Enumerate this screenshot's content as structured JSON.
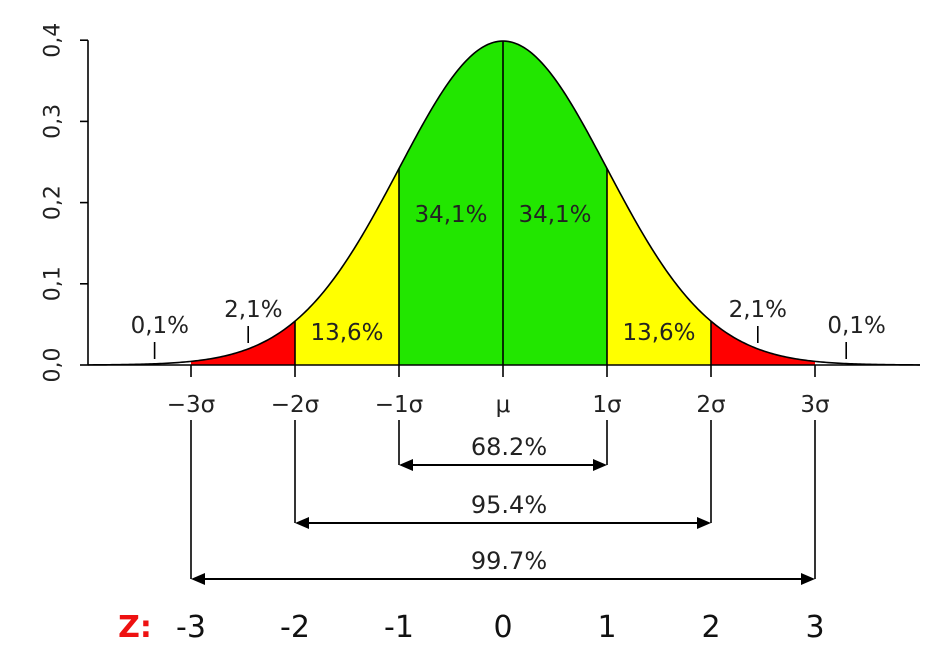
{
  "chart_data": {
    "type": "area",
    "title": "",
    "xlabel": "",
    "ylabel": "",
    "xlim": [
      -3.9,
      4.0
    ],
    "ylim": [
      0.0,
      0.4
    ],
    "grid": false,
    "curve": "normal-density",
    "y_ticks": [
      {
        "value": 0.0,
        "label": "0,0"
      },
      {
        "value": 0.1,
        "label": "0,1"
      },
      {
        "value": 0.2,
        "label": "0,2"
      },
      {
        "value": 0.3,
        "label": "0,3"
      },
      {
        "value": 0.4,
        "label": "0,4"
      }
    ],
    "x_ticks": [
      {
        "value": -3,
        "label": "−3σ"
      },
      {
        "value": -2,
        "label": "−2σ"
      },
      {
        "value": -1,
        "label": "−1σ"
      },
      {
        "value": 0,
        "label": "μ"
      },
      {
        "value": 1,
        "label": "1σ"
      },
      {
        "value": 2,
        "label": "2σ"
      },
      {
        "value": 3,
        "label": "3σ"
      }
    ],
    "regions": [
      {
        "from": -3,
        "to": -2,
        "color": "#ff0000"
      },
      {
        "from": -2,
        "to": -1,
        "color": "#ffff00"
      },
      {
        "from": -1,
        "to": 1,
        "color": "#22e600"
      },
      {
        "from": 1,
        "to": 2,
        "color": "#ffff00"
      },
      {
        "from": 2,
        "to": 3,
        "color": "#ff0000"
      }
    ],
    "band_labels": [
      {
        "x": -3.3,
        "label": "0,1%",
        "pointer": true,
        "pointer_x": -3.35
      },
      {
        "x": -2.4,
        "label": "2,1%",
        "pointer": true,
        "pointer_x": -2.45
      },
      {
        "x": -1.5,
        "label": "13,6%",
        "pointer": false
      },
      {
        "x": -0.5,
        "label": "34,1%",
        "pointer": false
      },
      {
        "x": 0.5,
        "label": "34,1%",
        "pointer": false
      },
      {
        "x": 1.5,
        "label": "13,6%",
        "pointer": false
      },
      {
        "x": 2.45,
        "label": "2,1%",
        "pointer": true,
        "pointer_x": 2.45
      },
      {
        "x": 3.4,
        "label": "0,1%",
        "pointer": true,
        "pointer_x": 3.3
      }
    ],
    "ranges": [
      {
        "from": -1,
        "to": 1,
        "label": "68.2%"
      },
      {
        "from": -2,
        "to": 2,
        "label": "95.4%"
      },
      {
        "from": -3,
        "to": 3,
        "label": "99.7%"
      }
    ],
    "z_scores": {
      "prefix": "Z:",
      "prefix_color": "#ee1111",
      "values": [
        {
          "value": -3,
          "label": "-3"
        },
        {
          "value": -2,
          "label": "-2"
        },
        {
          "value": -1,
          "label": "-1"
        },
        {
          "value": 0,
          "label": "0"
        },
        {
          "value": 1,
          "label": "1"
        },
        {
          "value": 2,
          "label": "2"
        },
        {
          "value": 3,
          "label": "3"
        }
      ]
    }
  }
}
